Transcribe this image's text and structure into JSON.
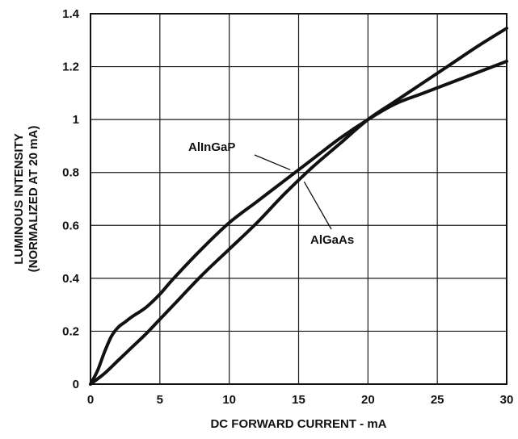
{
  "chart_data": {
    "type": "line",
    "xlabel": "DC FORWARD CURRENT - mA",
    "ylabel": [
      "LUMINOUS INTENSITY",
      "(NORMALIZED AT 20 mA)"
    ],
    "xlim": [
      0,
      30
    ],
    "ylim": [
      0,
      1.4
    ],
    "x_ticks": [
      0,
      5,
      10,
      15,
      20,
      25,
      30
    ],
    "y_ticks": [
      0,
      0.2,
      0.4,
      0.6,
      0.8,
      1,
      1.2,
      1.4
    ],
    "x_tick_labels": [
      "0",
      "5",
      "10",
      "15",
      "20",
      "25",
      "30"
    ],
    "y_tick_labels": [
      "0",
      "0.2",
      "0.4",
      "0.6",
      "0.8",
      "1",
      "1.2",
      "1.4"
    ],
    "grid": true,
    "series": [
      {
        "name": "AlInGaP",
        "x": [
          0,
          0.5,
          1,
          1.5,
          2,
          2.5,
          3,
          4,
          5,
          6,
          8,
          10,
          12,
          14,
          16,
          18,
          20,
          22,
          24,
          26,
          28,
          30
        ],
        "y": [
          0,
          0.05,
          0.12,
          0.18,
          0.215,
          0.235,
          0.255,
          0.29,
          0.34,
          0.4,
          0.51,
          0.61,
          0.69,
          0.77,
          0.85,
          0.93,
          1.0,
          1.06,
          1.1,
          1.14,
          1.18,
          1.22
        ]
      },
      {
        "name": "AlGaAs",
        "x": [
          0,
          1,
          2,
          3,
          4,
          5,
          6,
          8,
          10,
          12,
          14,
          16,
          18,
          20,
          22,
          24,
          26,
          28,
          30
        ],
        "y": [
          0,
          0.04,
          0.09,
          0.14,
          0.19,
          0.245,
          0.3,
          0.41,
          0.51,
          0.61,
          0.72,
          0.82,
          0.91,
          1.0,
          1.07,
          1.14,
          1.21,
          1.28,
          1.345
        ]
      }
    ],
    "annotations": [
      {
        "text": "AlInGaP",
        "series": "AlInGaP",
        "point_x": 14.4,
        "point_y": 0.81
      },
      {
        "text": "AlGaAs",
        "series": "AlGaAs",
        "point_x": 15.4,
        "point_y": 0.765
      }
    ]
  }
}
